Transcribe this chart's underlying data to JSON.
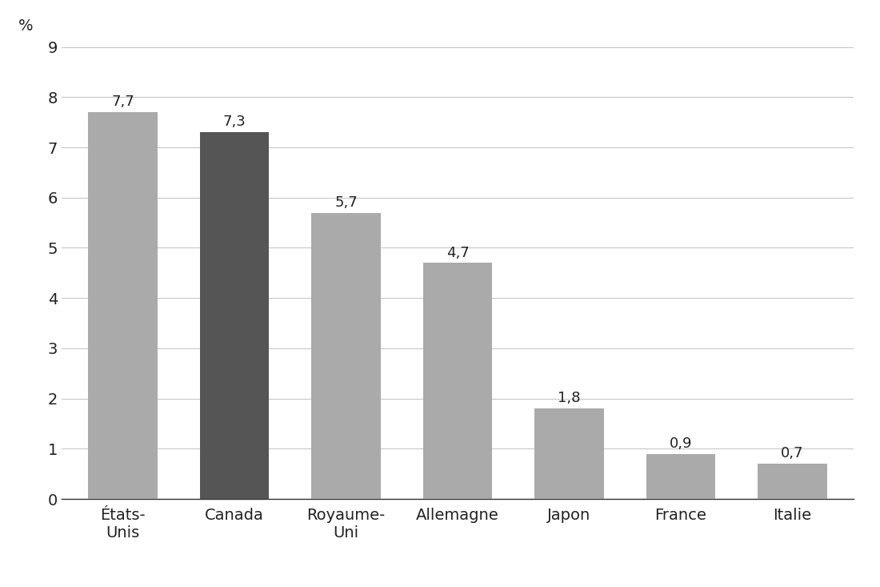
{
  "categories": [
    "États-\nUnis",
    "Canada",
    "Royaume-\nUni",
    "Allemagne",
    "Japon",
    "France",
    "Italie"
  ],
  "values": [
    7.7,
    7.3,
    5.7,
    4.7,
    1.8,
    0.9,
    0.7
  ],
  "bar_colors": [
    "#aaaaaa",
    "#555555",
    "#aaaaaa",
    "#aaaaaa",
    "#aaaaaa",
    "#aaaaaa",
    "#aaaaaa"
  ],
  "value_labels": [
    "7,7",
    "7,3",
    "5,7",
    "4,7",
    "1,8",
    "0,9",
    "0,7"
  ],
  "ylabel": "%",
  "ylim": [
    0,
    9
  ],
  "yticks": [
    0,
    1,
    2,
    3,
    4,
    5,
    6,
    7,
    8,
    9
  ],
  "background_color": "#ffffff",
  "bar_edge_color": "none",
  "grid_color": "#c8c8c8",
  "label_fontsize": 14,
  "tick_fontsize": 14,
  "ylabel_fontsize": 14,
  "annotation_fontsize": 13,
  "bar_width": 0.62
}
